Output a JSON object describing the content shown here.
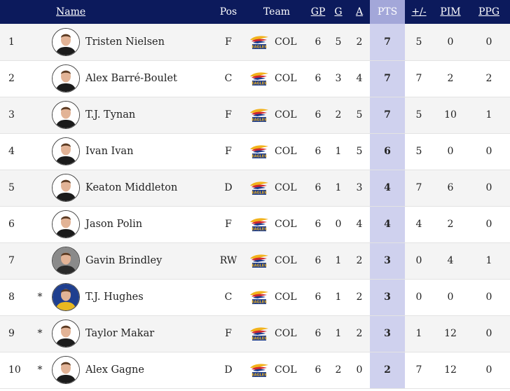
{
  "columns": {
    "name": "Name",
    "pos": "Pos",
    "team": "Team",
    "gp": "GP",
    "g": "G",
    "a": "A",
    "pts": "PTS",
    "pm": "+/-",
    "pim": "PIM",
    "ppg": "PPG"
  },
  "team_logo_text": "EAGLES",
  "rows": [
    {
      "rank": "1",
      "star": "",
      "name": "Tristen Nielsen",
      "pos": "F",
      "team": "COL",
      "gp": "6",
      "g": "5",
      "a": "2",
      "pts": "7",
      "pm": "5",
      "pim": "0",
      "ppg": "0",
      "avatar_bg": "#ffffff",
      "jersey": "#1b1b1b"
    },
    {
      "rank": "2",
      "star": "",
      "name": "Alex Barré-Boulet",
      "pos": "C",
      "team": "COL",
      "gp": "6",
      "g": "3",
      "a": "4",
      "pts": "7",
      "pm": "7",
      "pim": "2",
      "ppg": "2",
      "avatar_bg": "#ffffff",
      "jersey": "#1b1b1b"
    },
    {
      "rank": "3",
      "star": "",
      "name": "T.J. Tynan",
      "pos": "F",
      "team": "COL",
      "gp": "6",
      "g": "2",
      "a": "5",
      "pts": "7",
      "pm": "5",
      "pim": "10",
      "ppg": "1",
      "avatar_bg": "#ffffff",
      "jersey": "#1b1b1b"
    },
    {
      "rank": "4",
      "star": "",
      "name": "Ivan Ivan",
      "pos": "F",
      "team": "COL",
      "gp": "6",
      "g": "1",
      "a": "5",
      "pts": "6",
      "pm": "5",
      "pim": "0",
      "ppg": "0",
      "avatar_bg": "#ffffff",
      "jersey": "#1b1b1b"
    },
    {
      "rank": "5",
      "star": "",
      "name": "Keaton Middleton",
      "pos": "D",
      "team": "COL",
      "gp": "6",
      "g": "1",
      "a": "3",
      "pts": "4",
      "pm": "7",
      "pim": "6",
      "ppg": "0",
      "avatar_bg": "#ffffff",
      "jersey": "#1b1b1b"
    },
    {
      "rank": "6",
      "star": "",
      "name": "Jason Polin",
      "pos": "F",
      "team": "COL",
      "gp": "6",
      "g": "0",
      "a": "4",
      "pts": "4",
      "pm": "4",
      "pim": "2",
      "ppg": "0",
      "avatar_bg": "#ffffff",
      "jersey": "#1b1b1b"
    },
    {
      "rank": "7",
      "star": "",
      "name": "Gavin Brindley",
      "pos": "RW",
      "team": "COL",
      "gp": "6",
      "g": "1",
      "a": "2",
      "pts": "3",
      "pm": "0",
      "pim": "4",
      "ppg": "1",
      "avatar_bg": "#8a8a8a",
      "jersey": "#2a2a2a"
    },
    {
      "rank": "8",
      "star": "*",
      "name": "T.J. Hughes",
      "pos": "C",
      "team": "COL",
      "gp": "6",
      "g": "1",
      "a": "2",
      "pts": "3",
      "pm": "0",
      "pim": "0",
      "ppg": "0",
      "avatar_bg": "#1f3f8f",
      "jersey": "#e8b820"
    },
    {
      "rank": "9",
      "star": "*",
      "name": "Taylor Makar",
      "pos": "F",
      "team": "COL",
      "gp": "6",
      "g": "1",
      "a": "2",
      "pts": "3",
      "pm": "1",
      "pim": "12",
      "ppg": "0",
      "avatar_bg": "#ffffff",
      "jersey": "#1b1b1b"
    },
    {
      "rank": "10",
      "star": "*",
      "name": "Alex Gagne",
      "pos": "D",
      "team": "COL",
      "gp": "6",
      "g": "2",
      "a": "0",
      "pts": "2",
      "pm": "7",
      "pim": "12",
      "ppg": "0",
      "avatar_bg": "#ffffff",
      "jersey": "#1b1b1b"
    }
  ],
  "colors": {
    "header_bg": "#0c1a5c",
    "pts_header_bg": "#a3a7d9",
    "pts_cell_bg": "#cfd1ee",
    "eagle_red": "#d0272f",
    "eagle_blue": "#1a3c8f",
    "eagle_gold": "#f2b21c"
  }
}
